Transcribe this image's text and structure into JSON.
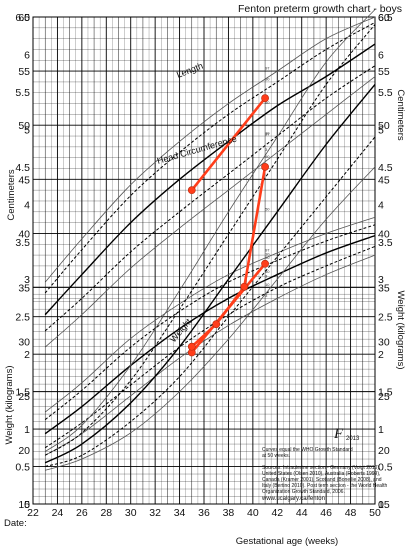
{
  "chart_data": {
    "type": "line",
    "title": "Fenton preterm growth chart - boys",
    "xlabel": "Gestational age (weeks)",
    "date_label": "Date:",
    "x_range": [
      22,
      50
    ],
    "x_ticks": [
      22,
      24,
      26,
      28,
      30,
      32,
      34,
      36,
      38,
      40,
      42,
      44,
      46,
      48,
      50
    ],
    "cm_axis": {
      "label": "Centimeters",
      "range": [
        15,
        60
      ],
      "ticks": [
        15,
        20,
        25,
        30,
        35,
        40,
        45,
        50,
        55,
        60
      ]
    },
    "weight_axis": {
      "label": "Weight (kilograms)",
      "range": [
        0,
        6.5
      ],
      "ticks": [
        0,
        0.5,
        1,
        1.5,
        2,
        2.5,
        3,
        3.5,
        4,
        4.5,
        5,
        5.5,
        6,
        6.5
      ],
      "tick_labels": [
        "0",
        "0.5",
        "1",
        "1.5",
        "2",
        "2.5",
        "3",
        "3.5",
        "4",
        "4.5",
        "5",
        "5.5",
        "6",
        "6.5"
      ]
    },
    "curve_labels": {
      "length": "Length",
      "head": "Head Circumference",
      "weight": "Weight"
    },
    "percentile_labels": [
      "97",
      "90",
      "50",
      "10",
      "3"
    ],
    "reference_curves": {
      "length_cm": {
        "x": [
          23,
          26,
          30,
          34,
          38,
          42,
          46,
          50
        ],
        "p3": [
          29.5,
          32.5,
          36.8,
          40.5,
          44,
          47.5,
          51,
          54.5
        ],
        "p10": [
          31,
          34,
          38.3,
          42,
          45.5,
          49,
          52.5,
          55.5
        ],
        "p50": [
          32.5,
          36.2,
          41,
          45,
          48.5,
          51.8,
          54.5,
          57.5
        ],
        "p90": [
          34.5,
          38.5,
          43.5,
          47.5,
          51,
          54,
          57,
          59.5
        ],
        "p97": [
          35.5,
          39.5,
          44.5,
          48.5,
          52,
          55,
          58,
          60
        ]
      },
      "head_cm": {
        "x": [
          23,
          26,
          30,
          34,
          38,
          42,
          46,
          50
        ],
        "p3": [
          19.5,
          21.5,
          25,
          28.5,
          31.5,
          34,
          36.2,
          38
        ],
        "p10": [
          20.2,
          22.5,
          26,
          29.5,
          32.5,
          35,
          37,
          38.8
        ],
        "p50": [
          21.5,
          24,
          27.8,
          31.2,
          34,
          36.2,
          38.2,
          39.8
        ],
        "p90": [
          22.8,
          25.5,
          29.5,
          32.8,
          35.5,
          37.5,
          39.3,
          40.8
        ],
        "p97": [
          23.5,
          26.2,
          30.3,
          33.5,
          36.2,
          38.2,
          40,
          41.5
        ]
      },
      "weight_kg": {
        "x": [
          23,
          26,
          30,
          34,
          38,
          42,
          46,
          50
        ],
        "p3": [
          0.45,
          0.6,
          0.95,
          1.5,
          2.2,
          3.0,
          3.8,
          4.5
        ],
        "p10": [
          0.5,
          0.65,
          1.1,
          1.7,
          2.5,
          3.3,
          4.1,
          4.9
        ],
        "p50": [
          0.55,
          0.8,
          1.35,
          2.1,
          3.0,
          3.9,
          4.8,
          5.6
        ],
        "p90": [
          0.65,
          0.95,
          1.65,
          2.6,
          3.6,
          4.6,
          5.6,
          6.4
        ],
        "p97": [
          0.7,
          1.05,
          1.85,
          2.85,
          3.9,
          4.9,
          5.9,
          6.6
        ]
      }
    },
    "patient_series": [
      {
        "name": "length",
        "x": [
          35,
          41
        ],
        "y": [
          44,
          52.5
        ]
      },
      {
        "name": "head",
        "x": [
          35,
          41
        ],
        "y": [
          29,
          37.2
        ]
      },
      {
        "name": "weight",
        "x": [
          35,
          37,
          39.3,
          41
        ],
        "y": [
          2.1,
          2.4,
          2.9,
          4.5
        ]
      }
    ],
    "colors": {
      "patient": "#ff3d1a",
      "patient_marker": "#ff3d1a",
      "grid": "#000000"
    },
    "grid": true,
    "logo": "F2013",
    "note": [
      "Curves equal the WHO Growth Standard",
      "at 50 weeks.",
      "",
      "Sources: Intrauterine section - Germany (Voigt 2010),",
      "United States (Olsen 2010), Australia (Roberts 1999),",
      "Canada (Kramer 2001), Scotland (Bonellie 2008), and",
      "Italy (Bertino 2010). Post term section - the World Health",
      "Organization Growth Standard, 2006."
    ],
    "url": "www.ucalgary.ca/fenton"
  }
}
